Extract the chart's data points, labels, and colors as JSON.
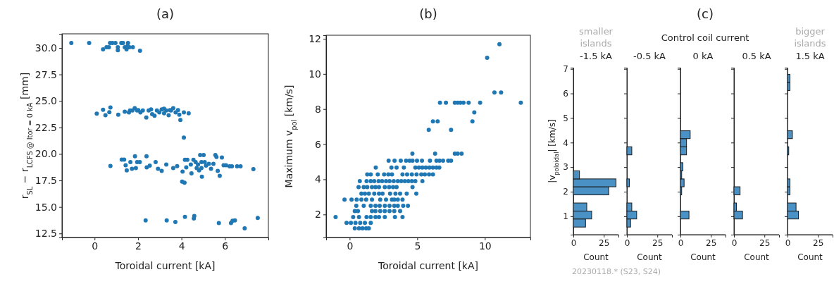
{
  "chart_data": [
    {
      "type": "scatter",
      "title": "(a)",
      "xlabel": "Toroidal current [kA]",
      "ylabel": "r$_{SL}$ − r$_{LCFS @ Itor = 0 kA}$ [mm]",
      "color": "#1f77b4",
      "marker": "circle",
      "xlim": [
        -1.5,
        8.0
      ],
      "ylim": [
        12.12,
        31.33
      ],
      "xticks": [
        0,
        2,
        4,
        6
      ],
      "yticks": [
        {
          "value": 12.5,
          "label": "12.5"
        },
        {
          "value": 15,
          "label": "15.0"
        },
        {
          "value": 17.5,
          "label": "17.5"
        },
        {
          "value": 20,
          "label": "20.0"
        },
        {
          "value": 22.5,
          "label": "22.5"
        },
        {
          "value": 25,
          "label": "25.0"
        },
        {
          "value": 27.5,
          "label": "27.5"
        },
        {
          "value": 30,
          "label": "30.0"
        }
      ],
      "x": [
        -1.07,
        -0.25,
        0.39,
        0.55,
        0.66,
        0.71,
        0.82,
        0.96,
        1.07,
        1.07,
        1.23,
        1.31,
        1.39,
        1.47,
        1.54,
        1.6,
        1.76,
        2.09,
        1.52,
        0.1,
        0.39,
        0.5,
        0.68,
        0.73,
        1.09,
        1.39,
        1.58,
        1.74,
        1.85,
        1.96,
        2.11,
        2.22,
        2.38,
        2.49,
        2.65,
        2.76,
        2.87,
        2.98,
        3.09,
        3.2,
        3.3,
        3.41,
        3.52,
        3.62,
        3.73,
        3.84,
        3.95,
        4.11,
        4.33,
        1.63,
        2.01,
        2.6,
        3.2,
        3.47,
        3.9,
        4.11,
        0.73,
        1.25,
        1.36,
        1.43,
        1.48,
        1.65,
        1.72,
        1.86,
        1.9,
        1.96,
        2.08,
        2.39,
        2.4,
        2.54,
        2.81,
        2.92,
        3.09,
        3.3,
        3.62,
        3.8,
        4.05,
        4.03,
        4.14,
        4.16,
        4.22,
        4.27,
        4.43,
        4.46,
        4.55,
        4.7,
        4.76,
        4.81,
        4.86,
        4.92,
        4.94,
        5.02,
        5.07,
        5.26,
        5.36,
        5.47,
        5.56,
        5.61,
        5.67,
        5.76,
        5.86,
        5.94,
        6.05,
        6.21,
        6.32,
        6.56,
        6.72,
        7.31,
        4.65,
        5.13,
        4.92,
        2.35,
        3.32,
        3.72,
        4.16,
        4.57,
        4.59,
        5.72,
        6.28,
        6.35,
        6.46,
        6.91,
        7.51
      ],
      "values": [
        30.46,
        30.46,
        29.87,
        30.07,
        30.07,
        30.46,
        30.46,
        30.46,
        30.07,
        29.78,
        30.46,
        30.46,
        30.07,
        29.87,
        30.46,
        30.07,
        30.07,
        29.73,
        30.18,
        23.81,
        24.16,
        23.65,
        23.94,
        24.38,
        23.7,
        23.98,
        23.92,
        24.1,
        24.32,
        24.1,
        23.92,
        24.1,
        23.43,
        24.1,
        23.76,
        23.6,
        24.1,
        23.92,
        24.2,
        23.83,
        24.1,
        23.65,
        24.1,
        24.32,
        23.92,
        24.14,
        23.21,
        23.92,
        23.83,
        24.1,
        24.14,
        24.2,
        24.27,
        24.14,
        23.7,
        21.55,
        18.87,
        19.47,
        19.47,
        18.94,
        18.45,
        19.23,
        18.6,
        19.78,
        18.67,
        19.23,
        19.23,
        19.78,
        18.74,
        18.9,
        19.23,
        18.6,
        18.4,
        19.0,
        18.67,
        18.85,
        18.34,
        17.39,
        17.28,
        19.45,
        18.74,
        19.45,
        19.0,
        18.17,
        19.45,
        18.67,
        19.0,
        18.45,
        19.89,
        19.23,
        17.86,
        19.89,
        19.23,
        19.07,
        18.6,
        19.07,
        19.89,
        19.71,
        18.4,
        17.93,
        19.67,
        18.94,
        18.94,
        18.83,
        18.83,
        18.83,
        18.83,
        18.56,
        19.23,
        18.9,
        18.67,
        13.74,
        13.74,
        13.59,
        14.07,
        13.92,
        14.14,
        13.48,
        13.48,
        13.7,
        13.74,
        12.99,
        13.96
      ]
    },
    {
      "type": "scatter",
      "title": "(b)",
      "xlabel": "Toroidal current [kA]",
      "ylabel": "Maximum v$_{pol}$ [km/s]",
      "color": "#1f77b4",
      "marker": "circle",
      "xlim": [
        -1.74,
        13.37
      ],
      "ylim": [
        0.69,
        12.2
      ],
      "xticks": [
        0,
        5,
        10
      ],
      "yticks": [
        2,
        4,
        6,
        8,
        10,
        12
      ],
      "x": [
        11.08,
        10.17,
        10.71,
        11.2,
        12.66,
        6.68,
        7.12,
        7.78,
        7.99,
        8.19,
        8.42,
        8.8,
        9.65,
        9.22,
        9.08,
        6.16,
        6.51,
        5.85,
        7.5,
        4.64,
        6.32,
        7.78,
        7.99,
        8.28,
        2.88,
        3.32,
        3.78,
        4.17,
        4.43,
        4.65,
        4.98,
        5.35,
        5.94,
        6.42,
        6.65,
        6.91,
        7.29,
        7.5,
        1.93,
        3.09,
        3.47,
        4.01,
        4.86,
        5.12,
        5.38,
        5.64,
        5.9,
        6.16,
        6.42,
        6.63,
        1.3,
        1.56,
        2.08,
        2.55,
        2.86,
        3.13,
        3.91,
        4.25,
        4.6,
        4.95,
        5.3,
        5.56,
        5.87,
        6.16,
        0.75,
        1.25,
        1.56,
        1.82,
        2.14,
        2.4,
        2.69,
        2.95,
        3.26,
        3.56,
        3.82,
        4.08,
        4.34,
        4.6,
        4.86,
        5.38,
        0.66,
        1.04,
        1.3,
        1.65,
        1.91,
        2.17,
        2.6,
        2.92,
        3.21,
        3.47,
        4.65,
        0.87,
        1.13,
        1.42,
        1.82,
        2.17,
        2.43,
        2.99,
        3.39,
        3.73,
        4.22,
        4.93,
        -0.38,
        0.14,
        0.52,
        0.87,
        1.22,
        1.65,
        2.26,
        2.69,
        3.13,
        3.3,
        3.56,
        3.91,
        0.49,
        1.04,
        1.56,
        1.91,
        2.22,
        2.6,
        2.95,
        3.3,
        3.56,
        3.96,
        4.31,
        0.38,
        0.61,
        1.65,
        1.91,
        2.26,
        2.6,
        2.95,
        3.3,
        3.73,
        -1.04,
        0.26,
        0.69,
        1.25,
        1.56,
        1.91,
        2.17,
        2.6,
        3.35,
        3.91,
        -0.23,
        0.09,
        0.43,
        0.78,
        1.13,
        1.56,
        0.38,
        0.69,
        0.95,
        1.22,
        1.42
      ],
      "values": [
        11.69,
        10.92,
        8.94,
        8.94,
        8.36,
        8.36,
        8.36,
        8.36,
        8.36,
        8.36,
        8.36,
        8.36,
        8.36,
        7.81,
        7.3,
        7.3,
        7.3,
        6.82,
        6.82,
        5.46,
        5.46,
        5.46,
        5.46,
        5.46,
        5.06,
        5.06,
        5.06,
        5.06,
        5.06,
        5.06,
        5.06,
        5.06,
        5.06,
        5.06,
        5.06,
        5.06,
        5.06,
        5.06,
        4.67,
        4.67,
        4.67,
        4.67,
        4.67,
        4.67,
        4.67,
        4.67,
        4.67,
        4.67,
        4.67,
        4.67,
        4.28,
        4.28,
        4.28,
        4.28,
        4.28,
        4.28,
        4.28,
        4.28,
        4.28,
        4.28,
        4.28,
        4.28,
        4.28,
        4.28,
        3.9,
        3.9,
        3.9,
        3.9,
        3.9,
        3.9,
        3.9,
        3.9,
        3.9,
        3.9,
        3.9,
        3.9,
        3.9,
        3.9,
        3.9,
        3.9,
        3.56,
        3.56,
        3.56,
        3.56,
        3.56,
        3.56,
        3.56,
        3.56,
        3.56,
        3.56,
        3.56,
        3.19,
        3.19,
        3.19,
        3.19,
        3.19,
        3.19,
        3.19,
        3.19,
        3.19,
        3.19,
        3.19,
        2.85,
        2.85,
        2.85,
        2.85,
        2.85,
        2.85,
        2.85,
        2.85,
        2.85,
        2.85,
        2.85,
        2.85,
        2.49,
        2.49,
        2.49,
        2.49,
        2.49,
        2.49,
        2.49,
        2.49,
        2.49,
        2.49,
        2.49,
        2.19,
        2.19,
        2.19,
        2.19,
        2.19,
        2.19,
        2.19,
        2.19,
        2.19,
        1.85,
        1.85,
        1.85,
        1.85,
        1.85,
        1.85,
        1.85,
        1.85,
        1.85,
        1.85,
        1.52,
        1.52,
        1.52,
        1.52,
        1.52,
        1.52,
        1.21,
        1.21,
        1.21,
        1.21,
        1.21
      ]
    },
    {
      "type": "histogram",
      "orientation": "horizontal",
      "title": "-1.5 kA",
      "annotations": [
        "smaller islands",
        "20230118.* (S23, S24)"
      ],
      "xlabel": "Count",
      "ylabel": "|v$_{poloidal}$| [km/s]",
      "color": "#4a91c6",
      "xlim": [
        0,
        37
      ],
      "xticks": [
        0,
        25
      ],
      "ylim": [
        0.25,
        7.05
      ],
      "yticks": [
        1,
        2,
        3,
        4,
        5,
        6,
        7
      ],
      "bins": [
        0.56,
        0.89,
        1.21,
        1.54,
        1.87,
        2.2,
        2.52,
        2.85,
        3.18,
        3.5,
        3.83,
        4.16,
        4.48,
        4.81,
        5.14,
        5.47,
        5.79,
        6.12,
        6.45,
        6.78
      ],
      "values": [
        10,
        15,
        11,
        0,
        29,
        35,
        5,
        0,
        0,
        0,
        0,
        0,
        0,
        0,
        0,
        0,
        0,
        0,
        0
      ]
    },
    {
      "type": "histogram",
      "orientation": "horizontal",
      "title": "-0.5 kA",
      "xlabel": "Count",
      "tick_labels": "x",
      "color": "#4a91c6",
      "xlim": [
        0,
        37
      ],
      "xticks": [
        0,
        25
      ],
      "ylim": [
        0.25,
        7.05
      ],
      "yticks": [
        1,
        2,
        3,
        4,
        5,
        6,
        7
      ],
      "bins": [
        0.56,
        0.89,
        1.21,
        1.54,
        1.87,
        2.2,
        2.52,
        2.85,
        3.18,
        3.5,
        3.83,
        4.16,
        4.48,
        4.81,
        5.14,
        5.47,
        5.79,
        6.12,
        6.45,
        6.78
      ],
      "values": [
        3,
        8,
        4,
        0,
        0,
        2,
        0,
        0,
        0,
        4,
        0,
        0,
        0,
        0,
        0,
        0,
        0,
        0,
        0
      ]
    },
    {
      "type": "histogram",
      "orientation": "horizontal",
      "title": "0 kA",
      "annotations": [
        "(c)",
        "Control coil current"
      ],
      "xlabel": "Count",
      "tick_labels": "x",
      "color": "#4a91c6",
      "xlim": [
        0,
        37
      ],
      "xticks": [
        0,
        25
      ],
      "ylim": [
        0.25,
        7.05
      ],
      "yticks": [
        1,
        2,
        3,
        4,
        5,
        6,
        7
      ],
      "bins": [
        0.56,
        0.89,
        1.21,
        1.54,
        1.87,
        2.2,
        2.52,
        2.85,
        3.18,
        3.5,
        3.83,
        4.16,
        4.48,
        4.81,
        5.14,
        5.47,
        5.79,
        6.12,
        6.45,
        6.78
      ],
      "values": [
        0,
        7,
        0,
        0,
        1,
        3,
        1,
        2,
        0,
        5,
        5,
        8,
        0,
        0,
        0,
        0,
        0,
        0,
        0
      ]
    },
    {
      "type": "histogram",
      "orientation": "horizontal",
      "title": "0.5 kA",
      "xlabel": "Count",
      "tick_labels": "x",
      "color": "#4a91c6",
      "xlim": [
        0,
        37
      ],
      "xticks": [
        0,
        25
      ],
      "ylim": [
        0.25,
        7.05
      ],
      "yticks": [
        1,
        2,
        3,
        4,
        5,
        6,
        7
      ],
      "bins": [
        0.56,
        0.89,
        1.21,
        1.54,
        1.87,
        2.2,
        2.52,
        2.85,
        3.18,
        3.5,
        3.83,
        4.16,
        4.48,
        4.81,
        5.14,
        5.47,
        5.79,
        6.12,
        6.45,
        6.78
      ],
      "values": [
        0,
        7,
        2,
        0,
        5,
        0,
        0,
        0,
        0,
        0,
        0,
        0,
        0,
        0,
        0,
        0,
        0,
        0,
        0
      ]
    },
    {
      "type": "histogram",
      "orientation": "horizontal",
      "title": "1.5 kA",
      "annotations": [
        "bigger islands"
      ],
      "xlabel": "Count",
      "tick_labels": "x",
      "color": "#4a91c6",
      "xlim": [
        0,
        37
      ],
      "xticks": [
        0,
        25
      ],
      "ylim": [
        0.25,
        7.05
      ],
      "yticks": [
        1,
        2,
        3,
        4,
        5,
        6,
        7
      ],
      "bins": [
        0.56,
        0.89,
        1.21,
        1.54,
        1.87,
        2.2,
        2.52,
        2.85,
        3.18,
        3.5,
        3.83,
        4.16,
        4.48,
        4.81,
        5.14,
        5.47,
        5.79,
        6.12,
        6.45,
        6.78
      ],
      "values": [
        0,
        9,
        7,
        0,
        2,
        2,
        0,
        0,
        0,
        1,
        0,
        4,
        0,
        0,
        0,
        0,
        0,
        2,
        2
      ]
    }
  ]
}
